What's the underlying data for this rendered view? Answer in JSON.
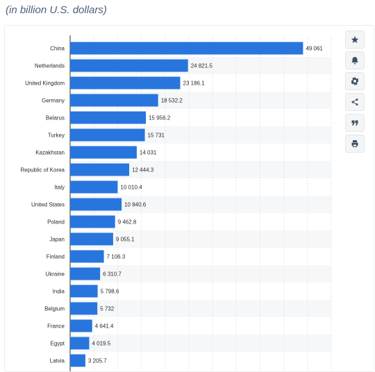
{
  "header": {
    "subtitle": "(in billion U.S. dollars)"
  },
  "toolbar": {
    "icons": [
      "star-icon",
      "bell-icon",
      "gear-icon",
      "share-icon",
      "quote-icon",
      "print-icon"
    ]
  },
  "colors": {
    "bar": "#2876dd",
    "band": "#f6f7f9",
    "grid": "#e3e6ea",
    "axis": "#2b2b2b",
    "label": "#2b2b2b"
  },
  "chart_data": {
    "type": "bar",
    "orientation": "horizontal",
    "title": "",
    "xlabel": "",
    "ylabel": "",
    "grid": true,
    "categories": [
      "China",
      "Netherlands",
      "United Kingdom",
      "Germany",
      "Belarus",
      "Turkey",
      "Kazakhstan",
      "Republic of Korea",
      "Italy",
      "United States",
      "Poland",
      "Japan",
      "Finland",
      "Ukraine",
      "India",
      "Belgium",
      "France",
      "Egypt",
      "Latvia"
    ],
    "values": [
      49061,
      24821.5,
      23186.1,
      18532.2,
      15956.2,
      15731,
      14031,
      12444.3,
      10010.4,
      10840.6,
      9462.8,
      9055.1,
      7106.3,
      6310.7,
      5798.6,
      5732,
      4641.4,
      4019.5,
      3205.7
    ],
    "value_labels": [
      "49 061",
      "24 821.5",
      "23 186.1",
      "18 532.2",
      "15 956.2",
      "15 731",
      "14 031",
      "12 444.3",
      "10 010.4",
      "10 840.6",
      "9 462.8",
      "9 055.1",
      "7 106.3",
      "6 310.7",
      "5 798.6",
      "5 732",
      "4 641.4",
      "4 019.5",
      "3 205.7"
    ],
    "xlim": [
      0,
      55000
    ]
  }
}
